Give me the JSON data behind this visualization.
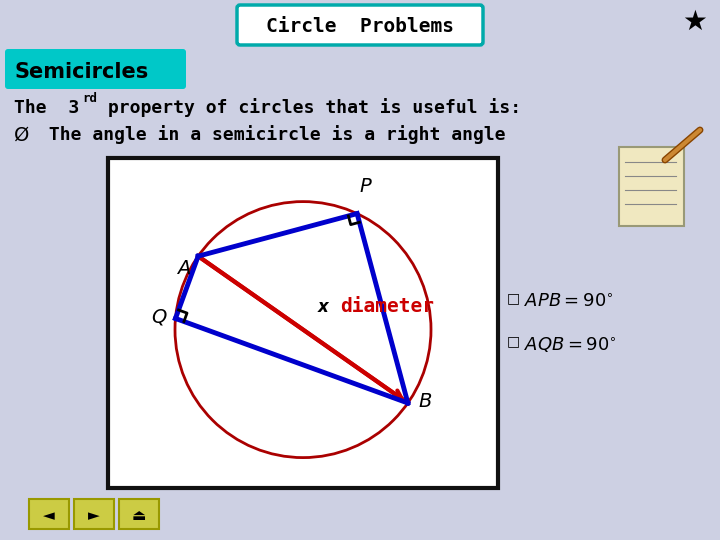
{
  "bg_color": "#cdd0e3",
  "title_text": "Circle  Problems",
  "title_box_color": "#ffffff",
  "title_border_color": "#00aaaa",
  "semicircles_label": "Semicircles",
  "semicircles_bg": "#00c8c8",
  "circle_color": "#aa0000",
  "line_color_blue": "#0000cc",
  "line_color_red": "#cc0000",
  "diagram_box_bg": "#ffffff",
  "diagram_box_border": "#111111",
  "label_APB": "$\\mathit{APB} = 90^{\\circ}$",
  "label_AQB": "$\\mathit{AQB} = 90^{\\circ}$",
  "nav_color": "#cccc44"
}
